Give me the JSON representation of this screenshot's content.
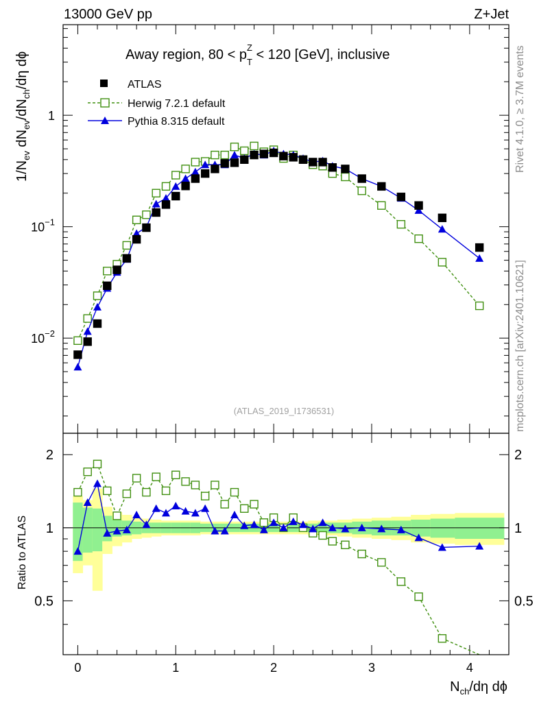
{
  "header": {
    "energy": "13000 GeV pp",
    "process": "Z+Jet",
    "title_main": "Away region, 80 < p",
    "title_sup": "Z",
    "title_sub": "T",
    "title_rest": " < 120 [GeV], inclusive",
    "analysis": "(ATLAS_2019_I1736531)",
    "rivet": "Rivet 4.1.0, ≥ 3.7M events",
    "mcplots": "mcplots.cern.ch [arXiv:2401.10621]"
  },
  "axes": {
    "ylabel_main": {
      "a": "1/N",
      "a_sub": "ev",
      "b": " dN",
      "b_sub": "ev",
      "c": "/dN",
      "c_sub": "ch",
      "d": "/dη dϕ"
    },
    "ylabel_ratio": "Ratio to ATLAS",
    "xlabel": {
      "a": "N",
      "a_sub": "ch",
      "b": "/dη dϕ"
    },
    "x_ticks": [
      "0",
      "1",
      "2",
      "3",
      "4"
    ],
    "y_ticks_main": [
      {
        "base": "10",
        "exp": "−2",
        "value": 0.01
      },
      {
        "base": "10",
        "exp": "−1",
        "value": 0.1
      },
      {
        "base": "1",
        "exp": "",
        "value": 1
      }
    ],
    "y_ticks_ratio": [
      "0.5",
      "1",
      "2"
    ]
  },
  "legend": [
    {
      "key": "data",
      "label": "ATLAS"
    },
    {
      "key": "herwig",
      "label": "Herwig 7.2.1 default"
    },
    {
      "key": "pythia",
      "label": "Pythia 8.315 default"
    }
  ],
  "colors": {
    "data": "#000000",
    "herwig": "#3f8f0f",
    "pythia": "#0000dd",
    "band_inner": "#90f090",
    "band_outer": "#ffff99"
  },
  "chart_data": {
    "type": "scatter",
    "xlabel": "Nch/dη dϕ",
    "ylabel": "1/Nev dNev/dNch/dη dϕ",
    "xlim": [
      -0.15,
      4.4
    ],
    "ylim": [
      0.0014,
      6.5
    ],
    "yscale": "log",
    "ratio_ylim": [
      0.3,
      2.45
    ],
    "series": [
      {
        "name": "ATLAS",
        "x": [
          0.0,
          0.1,
          0.2,
          0.3,
          0.4,
          0.5,
          0.6,
          0.7,
          0.8,
          0.9,
          1.0,
          1.1,
          1.2,
          1.3,
          1.4,
          1.5,
          1.6,
          1.7,
          1.8,
          1.9,
          2.0,
          2.1,
          2.2,
          2.3,
          2.4,
          2.5,
          2.6,
          2.73,
          2.9,
          3.1,
          3.3,
          3.48,
          3.72,
          4.1
        ],
        "values": [
          0.0071,
          0.0093,
          0.0135,
          0.0295,
          0.041,
          0.052,
          0.077,
          0.098,
          0.134,
          0.158,
          0.188,
          0.232,
          0.27,
          0.3,
          0.33,
          0.37,
          0.375,
          0.4,
          0.44,
          0.45,
          0.46,
          0.43,
          0.42,
          0.4,
          0.38,
          0.38,
          0.34,
          0.33,
          0.27,
          0.23,
          0.185,
          0.155,
          0.12,
          0.065
        ]
      },
      {
        "name": "Herwig 7.2.1 default",
        "x": [
          0.0,
          0.1,
          0.2,
          0.3,
          0.4,
          0.5,
          0.6,
          0.7,
          0.8,
          0.9,
          1.0,
          1.1,
          1.2,
          1.3,
          1.4,
          1.5,
          1.6,
          1.7,
          1.8,
          1.9,
          2.0,
          2.1,
          2.2,
          2.3,
          2.4,
          2.5,
          2.6,
          2.73,
          2.9,
          3.1,
          3.3,
          3.48,
          3.72,
          4.1
        ],
        "values": [
          0.0095,
          0.015,
          0.024,
          0.04,
          0.046,
          0.068,
          0.115,
          0.128,
          0.2,
          0.23,
          0.29,
          0.33,
          0.38,
          0.385,
          0.44,
          0.44,
          0.52,
          0.48,
          0.53,
          0.47,
          0.49,
          0.41,
          0.44,
          0.4,
          0.36,
          0.35,
          0.3,
          0.28,
          0.21,
          0.155,
          0.105,
          0.078,
          0.048,
          0.0195
        ]
      },
      {
        "name": "Pythia 8.315 default",
        "x": [
          0.0,
          0.1,
          0.2,
          0.3,
          0.4,
          0.5,
          0.6,
          0.7,
          0.8,
          0.9,
          1.0,
          1.1,
          1.2,
          1.3,
          1.4,
          1.5,
          1.6,
          1.7,
          1.8,
          1.9,
          2.0,
          2.1,
          2.2,
          2.3,
          2.4,
          2.5,
          2.6,
          2.73,
          2.9,
          3.1,
          3.3,
          3.48,
          3.72,
          4.1
        ],
        "values": [
          0.0055,
          0.0115,
          0.019,
          0.028,
          0.039,
          0.051,
          0.087,
          0.099,
          0.16,
          0.18,
          0.23,
          0.27,
          0.31,
          0.36,
          0.36,
          0.36,
          0.44,
          0.41,
          0.45,
          0.44,
          0.48,
          0.45,
          0.44,
          0.41,
          0.38,
          0.39,
          0.35,
          0.33,
          0.27,
          0.23,
          0.18,
          0.14,
          0.095,
          0.052
        ]
      }
    ],
    "ratio": {
      "herwig": [
        1.4,
        1.7,
        1.83,
        1.42,
        1.12,
        1.38,
        1.6,
        1.4,
        1.62,
        1.42,
        1.65,
        1.55,
        1.5,
        1.35,
        1.5,
        1.25,
        1.4,
        1.2,
        1.25,
        1.05,
        1.1,
        1.0,
        1.1,
        1.0,
        0.95,
        0.93,
        0.88,
        0.85,
        0.78,
        0.72,
        0.6,
        0.52,
        0.35,
        0.3
      ],
      "pythia": [
        0.8,
        1.27,
        1.52,
        0.95,
        0.97,
        0.98,
        1.13,
        1.03,
        1.2,
        1.15,
        1.23,
        1.17,
        1.15,
        1.2,
        0.97,
        0.97,
        1.13,
        1.02,
        1.03,
        0.98,
        1.05,
        1.0,
        1.06,
        1.03,
        0.99,
        1.05,
        1.0,
        0.99,
        1.0,
        0.99,
        0.98,
        0.91,
        0.83,
        0.84
      ]
    },
    "uncertainty_band": {
      "edges": [
        -0.05,
        0.05,
        0.15,
        0.25,
        0.35,
        0.45,
        0.55,
        0.65,
        0.75,
        0.85,
        0.95,
        1.05,
        1.15,
        1.25,
        1.35,
        1.45,
        1.55,
        1.65,
        1.75,
        1.85,
        1.95,
        2.05,
        2.15,
        2.25,
        2.35,
        2.45,
        2.55,
        2.65,
        2.8,
        3.0,
        3.2,
        3.4,
        3.6,
        3.85,
        4.35
      ],
      "inner_rel": [
        0.27,
        0.21,
        0.2,
        0.12,
        0.08,
        0.07,
        0.06,
        0.05,
        0.05,
        0.05,
        0.05,
        0.05,
        0.05,
        0.04,
        0.04,
        0.04,
        0.04,
        0.04,
        0.04,
        0.04,
        0.04,
        0.04,
        0.04,
        0.04,
        0.04,
        0.05,
        0.05,
        0.05,
        0.06,
        0.07,
        0.07,
        0.08,
        0.09,
        0.1
      ],
      "outer_rel": [
        0.35,
        0.3,
        0.45,
        0.22,
        0.16,
        0.13,
        0.1,
        0.09,
        0.08,
        0.07,
        0.07,
        0.07,
        0.07,
        0.06,
        0.06,
        0.06,
        0.06,
        0.06,
        0.06,
        0.06,
        0.06,
        0.06,
        0.06,
        0.06,
        0.07,
        0.07,
        0.07,
        0.08,
        0.09,
        0.1,
        0.11,
        0.13,
        0.14,
        0.15
      ]
    }
  }
}
